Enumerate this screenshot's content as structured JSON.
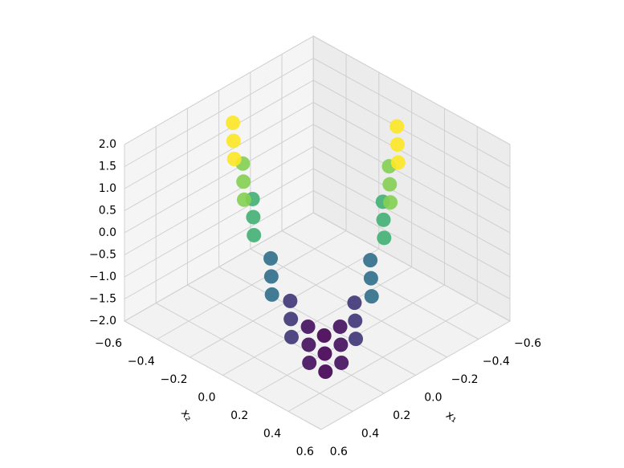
{
  "chart_data": {
    "type": "scatter3d",
    "xlabel": "x₁",
    "ylabel": "x₂",
    "colormap": "viridis",
    "xlim": [
      -0.6,
      0.6
    ],
    "ylim": [
      -0.6,
      0.6
    ],
    "zlim": [
      -2,
      2
    ],
    "xticks": [
      {
        "value": -0.6,
        "label": "−0.6"
      },
      {
        "value": -0.4,
        "label": "−0.4"
      },
      {
        "value": -0.2,
        "label": "−0.2"
      },
      {
        "value": 0,
        "label": "0.0"
      },
      {
        "value": 0.2,
        "label": "0.2"
      },
      {
        "value": 0.4,
        "label": "0.4"
      },
      {
        "value": 0.6,
        "label": "0.6"
      }
    ],
    "yticks": [
      {
        "value": -0.6,
        "label": "−0.6"
      },
      {
        "value": -0.4,
        "label": "−0.4"
      },
      {
        "value": -0.2,
        "label": "−0.2"
      },
      {
        "value": 0,
        "label": "0.0"
      },
      {
        "value": 0.2,
        "label": "0.2"
      },
      {
        "value": 0.4,
        "label": "0.4"
      },
      {
        "value": 0.6,
        "label": "0.6"
      }
    ],
    "zticks": [
      {
        "value": -2,
        "label": "−2.0"
      },
      {
        "value": -1.5,
        "label": "−1.5"
      },
      {
        "value": -1,
        "label": "−1.0"
      },
      {
        "value": -0.5,
        "label": "−0.5"
      },
      {
        "value": 0,
        "label": "0.0"
      },
      {
        "value": 0.5,
        "label": "0.5"
      },
      {
        "value": 1,
        "label": "1.0"
      },
      {
        "value": 1.5,
        "label": "1.5"
      },
      {
        "value": 2,
        "label": "2.0"
      }
    ],
    "grid": true,
    "points": {
      "x": [
        0.14,
        0.24,
        0.34,
        0.15,
        0.25,
        0.35,
        0.15,
        0.25,
        0.35,
        0.15,
        0.25,
        0.35,
        0.13,
        0.23,
        0.33,
        0.1,
        0.2,
        0.3,
        0.06,
        0.16,
        0.26,
        0.0,
        0.1,
        0.2,
        -0.06,
        0.04,
        0.14,
        -0.15,
        -0.05,
        0.05,
        -0.24,
        -0.14,
        -0.04,
        -0.29,
        -0.19,
        -0.09,
        -0.35,
        -0.25,
        -0.15
      ],
      "y": [
        -0.38,
        -0.28,
        -0.18,
        -0.31,
        -0.21,
        -0.11,
        -0.25,
        -0.15,
        -0.05,
        -0.14,
        -0.04,
        0.06,
        -0.04,
        0.06,
        0.16,
        0.04,
        0.14,
        0.24,
        0.1,
        0.2,
        0.3,
        0.14,
        0.24,
        0.34,
        0.17,
        0.27,
        0.37,
        0.18,
        0.28,
        0.38,
        0.17,
        0.27,
        0.37,
        0.16,
        0.26,
        0.36,
        0.15,
        0.25,
        0.35
      ],
      "z": [
        2,
        2,
        2,
        1.24,
        1.24,
        1.24,
        0.56,
        0.56,
        0.56,
        -0.56,
        -0.56,
        -0.56,
        -1.36,
        -1.36,
        -1.36,
        -1.84,
        -1.84,
        -1.84,
        -2,
        -2,
        -2,
        -1.84,
        -1.84,
        -1.84,
        -1.36,
        -1.36,
        -1.36,
        -0.56,
        -0.56,
        -0.56,
        0.56,
        0.56,
        0.56,
        1.24,
        1.24,
        1.24,
        2,
        2,
        2
      ]
    }
  }
}
